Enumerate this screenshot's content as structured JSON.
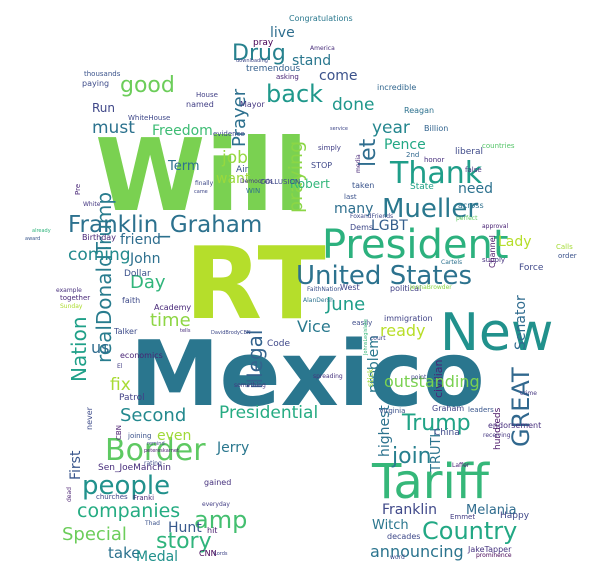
{
  "words": [
    {
      "text": "Mexico",
      "color": "#2a768e"
    },
    {
      "text": "RT",
      "color": "#b5de2b"
    },
    {
      "text": "Will",
      "color": "#7ad151"
    },
    {
      "text": "Tariff",
      "color": "#35b779"
    },
    {
      "text": "President",
      "color": "#2cb17e"
    },
    {
      "text": "New",
      "color": "#21918c"
    },
    {
      "text": "United States",
      "color": "#2c728e"
    },
    {
      "text": "Franklin_Graham",
      "color": "#2c718e"
    },
    {
      "text": "Border",
      "color": "#5ec962"
    },
    {
      "text": "Thank",
      "color": "#1f9e89"
    },
    {
      "text": "Mueller",
      "color": "#2a788e"
    },
    {
      "text": "people",
      "color": "#21918c"
    },
    {
      "text": "amp",
      "color": "#44bf70"
    },
    {
      "text": "Country",
      "color": "#22a884"
    },
    {
      "text": "GREAT",
      "color": "#31688e"
    },
    {
      "text": "Drug",
      "color": "#26818e"
    },
    {
      "text": "back",
      "color": "#1f988b"
    },
    {
      "text": "good",
      "color": "#6ccd5a"
    },
    {
      "text": "join",
      "color": "#277f8e"
    },
    {
      "text": "Trump",
      "color": "#20a386"
    },
    {
      "text": "story",
      "color": "#2fb47c"
    },
    {
      "text": "companies",
      "color": "#25ac82"
    },
    {
      "text": "Special",
      "color": "#6ccd5a"
    },
    {
      "text": "Nation",
      "color": "#1fa088"
    },
    {
      "text": "realDonaldTrump",
      "color": "#287c8e"
    },
    {
      "text": "illegal",
      "color": "#33638d"
    },
    {
      "text": "Presidential",
      "color": "#25ab82"
    },
    {
      "text": "Second",
      "color": "#23898e"
    },
    {
      "text": "coming",
      "color": "#238a8d"
    },
    {
      "text": "Day",
      "color": "#31b57b"
    },
    {
      "text": "time",
      "color": "#8ed645"
    },
    {
      "text": "year",
      "color": "#24868e"
    },
    {
      "text": "let",
      "color": "#2e6d8e"
    },
    {
      "text": "done",
      "color": "#1f978b"
    },
    {
      "text": "praying",
      "color": "#8bd646"
    },
    {
      "text": "Prayer",
      "color": "#2d708e"
    },
    {
      "text": "job",
      "color": "#95d840"
    },
    {
      "text": "must",
      "color": "#2c728e"
    },
    {
      "text": "Vice",
      "color": "#29798e"
    },
    {
      "text": "June",
      "color": "#1f9e89"
    },
    {
      "text": "ready",
      "color": "#b8de29"
    },
    {
      "text": "outstanding",
      "color": "#7ad151"
    },
    {
      "text": "announcing",
      "color": "#2b748e"
    },
    {
      "text": "take",
      "color": "#2c728e"
    },
    {
      "text": "Hunt",
      "color": "#38598c"
    },
    {
      "text": "Medal",
      "color": "#21918c"
    },
    {
      "text": "Jerry",
      "color": "#2a778e"
    },
    {
      "text": "Franklin",
      "color": "#3f4889"
    },
    {
      "text": "Melania",
      "color": "#2f6c8e"
    },
    {
      "text": "Witch",
      "color": "#2a768e"
    },
    {
      "text": "Lady",
      "color": "#b5de2b"
    },
    {
      "text": "Senator",
      "color": "#2f6b8e"
    },
    {
      "text": "need",
      "color": "#2c718e"
    },
    {
      "text": "Pence",
      "color": "#22a884"
    },
    {
      "text": "many",
      "color": "#2e6f8e"
    },
    {
      "text": "LGBT",
      "color": "#355f8d"
    },
    {
      "text": "friend",
      "color": "#2e6d8e"
    },
    {
      "text": "John",
      "color": "#2d708e"
    },
    {
      "text": "fix",
      "color": "#a8db34"
    },
    {
      "text": "us",
      "color": "#2f6c8e"
    },
    {
      "text": "problem",
      "color": "#2a788e"
    },
    {
      "text": "First",
      "color": "#39568c"
    },
    {
      "text": "highest",
      "color": "#2c728e"
    },
    {
      "text": "TRUTH",
      "color": "#2b758e"
    },
    {
      "text": "even",
      "color": "#a0da39"
    },
    {
      "text": "live",
      "color": "#2e6e8e"
    },
    {
      "text": "stand",
      "color": "#2a778e"
    },
    {
      "text": "come",
      "color": "#3b528b"
    },
    {
      "text": "want",
      "color": "#9bd93c"
    },
    {
      "text": "Freedom",
      "color": "#3dbc74"
    },
    {
      "text": "Run",
      "color": "#3f4788"
    },
    {
      "text": "Term",
      "color": "#2c728e"
    },
    {
      "text": "Robert",
      "color": "#32b67a"
    },
    {
      "text": "Congratulations",
      "color": "#2a788e"
    },
    {
      "text": "pray",
      "color": "#440154"
    },
    {
      "text": "tremendous",
      "color": "#35608d"
    },
    {
      "text": "incredible",
      "color": "#31668e"
    },
    {
      "text": "Reagan",
      "color": "#2c718e"
    },
    {
      "text": "Billion",
      "color": "#32648e"
    },
    {
      "text": "Air",
      "color": "#39558c"
    },
    {
      "text": "liberal",
      "color": "#3e4a89"
    },
    {
      "text": "honor",
      "color": "#472f7d"
    },
    {
      "text": "false",
      "color": "#46327e"
    },
    {
      "text": "countries",
      "color": "#54c568"
    },
    {
      "text": "State",
      "color": "#1fa187"
    },
    {
      "text": "across",
      "color": "#2d708e"
    },
    {
      "text": "taken",
      "color": "#3a548c"
    },
    {
      "text": "Dems",
      "color": "#3e4989"
    },
    {
      "text": "supply",
      "color": "#46337f"
    },
    {
      "text": "approval",
      "color": "#482173"
    },
    {
      "text": "perfect",
      "color": "#5ec962"
    },
    {
      "text": "Calls",
      "color": "#a5db36"
    },
    {
      "text": "order",
      "color": "#3b528b"
    },
    {
      "text": "Force",
      "color": "#3f4889"
    },
    {
      "text": "Channel",
      "color": "#481467"
    },
    {
      "text": "Cartels",
      "color": "#2c718e"
    },
    {
      "text": "Dollar",
      "color": "#3b518b"
    },
    {
      "text": "faith",
      "color": "#3e4a89"
    },
    {
      "text": "Academy",
      "color": "#482878"
    },
    {
      "text": "Talker",
      "color": "#3e4c8a"
    },
    {
      "text": "economics",
      "color": "#482475"
    },
    {
      "text": "El",
      "color": "#433e85"
    },
    {
      "text": "Patrol",
      "color": "#424186"
    },
    {
      "text": "never",
      "color": "#3e4c8a"
    },
    {
      "text": "CBN",
      "color": "#481b6d"
    },
    {
      "text": "joining",
      "color": "#3b528b"
    },
    {
      "text": "Sen_JoeManchin",
      "color": "#472d7b"
    },
    {
      "text": "rating",
      "color": "#3e4a89"
    },
    {
      "text": "gained",
      "color": "#46327e"
    },
    {
      "text": "everyday",
      "color": "#433e85"
    },
    {
      "text": "churches",
      "color": "#404688"
    },
    {
      "text": "Franki",
      "color": "#482878"
    },
    {
      "text": "dead",
      "color": "#481f70"
    },
    {
      "text": "Thad",
      "color": "#3b528b"
    },
    {
      "text": "hit",
      "color": "#481c6e"
    },
    {
      "text": "CNN",
      "color": "#440154"
    },
    {
      "text": "Lords",
      "color": "#404688"
    },
    {
      "text": "JakeTapper",
      "color": "#46337f"
    },
    {
      "text": "prominence",
      "color": "#440154"
    },
    {
      "text": "word",
      "color": "#3e4a89"
    },
    {
      "text": "Happy",
      "color": "#3f4788"
    },
    {
      "text": "Emmet",
      "color": "#433d84"
    },
    {
      "text": "decades",
      "color": "#3e4989"
    },
    {
      "text": "Graham",
      "color": "#414487"
    },
    {
      "text": "leaders",
      "color": "#39568c"
    },
    {
      "text": "endorsement",
      "color": "#472f7d"
    },
    {
      "text": "receiving",
      "color": "#453781"
    },
    {
      "text": "Laffer",
      "color": "#482173"
    },
    {
      "text": "crime",
      "color": "#453882"
    },
    {
      "text": "Virginia",
      "color": "#3b518b"
    },
    {
      "text": "China",
      "color": "#3e4a89"
    },
    {
      "text": "stick",
      "color": "#9fda3a"
    },
    {
      "text": "spreading",
      "color": "#46337f"
    },
    {
      "text": "something",
      "color": "#453781"
    },
    {
      "text": "DavidBrodyCBN",
      "color": "#3e4989"
    },
    {
      "text": "Code",
      "color": "#3f4889"
    },
    {
      "text": "easily",
      "color": "#3e4c8a"
    },
    {
      "text": "immigration",
      "color": "#414487"
    },
    {
      "text": "political",
      "color": "#424186"
    },
    {
      "text": "West",
      "color": "#404588"
    },
    {
      "text": "AlanDersh",
      "color": "#2c738e"
    },
    {
      "text": "FaithNation",
      "color": "#3b528b"
    },
    {
      "text": "JennaBrowder",
      "color": "#8bd646"
    },
    {
      "text": "thousands",
      "color": "#3a538b"
    },
    {
      "text": "WhiteHouse",
      "color": "#3f4889"
    },
    {
      "text": "House",
      "color": "#424086"
    },
    {
      "text": "named",
      "color": "#423f85"
    },
    {
      "text": "Mayor",
      "color": "#453781"
    },
    {
      "text": "evidence",
      "color": "#3e4c8a"
    },
    {
      "text": "finally",
      "color": "#3e4a89"
    },
    {
      "text": "came",
      "color": "#3f4788"
    },
    {
      "text": "hundreds",
      "color": "#471365"
    },
    {
      "text": "civilian",
      "color": "#482475"
    },
    {
      "text": "White",
      "color": "#453882"
    },
    {
      "text": "Birthday",
      "color": "#482576"
    },
    {
      "text": "Sunday",
      "color": "#addc30"
    },
    {
      "text": "together",
      "color": "#482878"
    },
    {
      "text": "example",
      "color": "#472f7d"
    },
    {
      "text": "award",
      "color": "#39568c"
    },
    {
      "text": "already",
      "color": "#2fb47c"
    },
    {
      "text": "Pre",
      "color": "#482677"
    },
    {
      "text": "paying",
      "color": "#3e4c8a"
    },
    {
      "text": "asking",
      "color": "#482475"
    },
    {
      "text": "downloading",
      "color": "#3f4788"
    },
    {
      "text": "America",
      "color": "#472c7a"
    },
    {
      "text": "Democrats",
      "color": "#453781"
    },
    {
      "text": "COLLUSION",
      "color": "#3e4989"
    },
    {
      "text": "WIN",
      "color": "#2e6f8e"
    },
    {
      "text": "STOP",
      "color": "#3f4889"
    },
    {
      "text": "simply",
      "color": "#424086"
    },
    {
      "text": "service",
      "color": "#3f4788"
    },
    {
      "text": "2nd",
      "color": "#31688e"
    },
    {
      "text": "last",
      "color": "#3b528b"
    },
    {
      "text": "FoxandFriends",
      "color": "#3e4989"
    },
    {
      "text": "media",
      "color": "#482878"
    },
    {
      "text": "remind",
      "color": "#3f4788"
    },
    {
      "text": "petereskarnet",
      "color": "#481c6e"
    },
    {
      "text": "JohnsLegislate",
      "color": "#35b779"
    },
    {
      "text": "court",
      "color": "#414487"
    },
    {
      "text": "tells",
      "color": "#472d7b"
    },
    {
      "text": "point",
      "color": "#404688"
    }
  ]
}
